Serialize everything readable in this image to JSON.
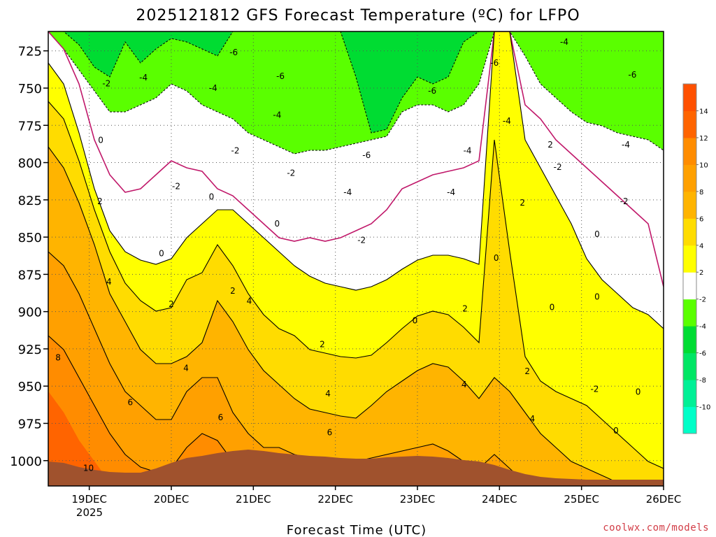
{
  "title": "2025121812 GFS Forecast Temperature (ºC) for LFPO",
  "credit": "coolwx.com/models",
  "colors": {
    "ground": "#a0522d",
    "zero_isotherm": "#c0186a",
    "contour": "#000000"
  },
  "chart_data": {
    "type": "heatmap",
    "title": "2025121812 GFS Forecast Temperature (ºC) for LFPO",
    "xlabel": "Forecast Time (UTC)",
    "ylabel": "",
    "x_ticks": [
      "19DEC",
      "20DEC",
      "21DEC",
      "22DEC",
      "23DEC",
      "24DEC",
      "25DEC",
      "26DEC"
    ],
    "x_tick_sub": "2025",
    "y_ticks": [
      725,
      750,
      775,
      800,
      825,
      850,
      875,
      900,
      925,
      950,
      975,
      1000
    ],
    "xlim_days": [
      18.5,
      26.0
    ],
    "ylim": [
      1017,
      712
    ],
    "grid": true,
    "colorbar": {
      "levels": [
        -12,
        -10,
        -8,
        -6,
        -4,
        -2,
        2,
        4,
        6,
        8,
        10,
        12,
        14,
        16
      ],
      "tick_labels": [
        "-10",
        "-8",
        "-6",
        "-4",
        "-2",
        "2",
        "4",
        "6",
        "8",
        "10",
        "12",
        "14"
      ],
      "colors": [
        "#00ffc8",
        "#00f096",
        "#00e664",
        "#00dc32",
        "#5aff00",
        "#ffffff",
        "#ffff00",
        "#ffdc00",
        "#ffb400",
        "#ffa000",
        "#ff8c00",
        "#ff6400",
        "#ff5000"
      ]
    },
    "label_text": {
      "m6": "-6",
      "m4": "-4",
      "m2": "-2",
      "z": "0",
      "p2": "2",
      "p4": "4",
      "p6": "6",
      "p8": "8",
      "p10": "10"
    },
    "contour_labels": [
      {
        "day": 18.99,
        "p": 1005,
        "t": 10
      },
      {
        "day": 18.62,
        "p": 931,
        "t": 8
      },
      {
        "day": 19.5,
        "p": 961,
        "t": 6
      },
      {
        "day": 20.6,
        "p": 971,
        "t": 6
      },
      {
        "day": 21.93,
        "p": 981,
        "t": 6
      },
      {
        "day": 19.24,
        "p": 880,
        "t": 4
      },
      {
        "day": 20.18,
        "p": 938,
        "t": 4
      },
      {
        "day": 20.95,
        "p": 893,
        "t": 4
      },
      {
        "day": 21.91,
        "p": 955,
        "t": 4
      },
      {
        "day": 23.57,
        "p": 949,
        "t": 4
      },
      {
        "day": 24.4,
        "p": 972,
        "t": 4
      },
      {
        "day": 19.13,
        "p": 826,
        "t": 2
      },
      {
        "day": 20.0,
        "p": 895,
        "t": 2
      },
      {
        "day": 20.75,
        "p": 886,
        "t": 2
      },
      {
        "day": 21.84,
        "p": 922,
        "t": 2
      },
      {
        "day": 23.58,
        "p": 898,
        "t": 2
      },
      {
        "day": 24.34,
        "p": 940,
        "t": 2
      },
      {
        "day": 24.28,
        "p": 827,
        "t": 2
      },
      {
        "day": 24.62,
        "p": 788,
        "t": 2
      },
      {
        "day": 19.14,
        "p": 785,
        "t": 0
      },
      {
        "day": 19.88,
        "p": 861,
        "t": 0
      },
      {
        "day": 20.49,
        "p": 823,
        "t": 0
      },
      {
        "day": 21.29,
        "p": 841,
        "t": 0
      },
      {
        "day": 22.97,
        "p": 906,
        "t": 0
      },
      {
        "day": 23.96,
        "p": 864,
        "t": 0
      },
      {
        "day": 24.64,
        "p": 897,
        "t": 0
      },
      {
        "day": 25.19,
        "p": 848,
        "t": 0
      },
      {
        "day": 25.19,
        "p": 890,
        "t": 0
      },
      {
        "day": 25.42,
        "p": 980,
        "t": 0
      },
      {
        "day": 25.69,
        "p": 954,
        "t": 0
      },
      {
        "day": 19.21,
        "p": 747,
        "t": -2
      },
      {
        "day": 20.06,
        "p": 816,
        "t": -2
      },
      {
        "day": 20.78,
        "p": 792,
        "t": -2
      },
      {
        "day": 21.46,
        "p": 807,
        "t": -2
      },
      {
        "day": 22.32,
        "p": 852,
        "t": -2
      },
      {
        "day": 24.71,
        "p": 803,
        "t": -2
      },
      {
        "day": 25.52,
        "p": 826,
        "t": -2
      },
      {
        "day": 25.16,
        "p": 952,
        "t": -2
      },
      {
        "day": 19.66,
        "p": 743,
        "t": -4
      },
      {
        "day": 20.51,
        "p": 750,
        "t": -4
      },
      {
        "day": 21.29,
        "p": 768,
        "t": -4
      },
      {
        "day": 22.15,
        "p": 820,
        "t": -4
      },
      {
        "day": 23.41,
        "p": 820,
        "t": -4
      },
      {
        "day": 23.61,
        "p": 792,
        "t": -4
      },
      {
        "day": 24.09,
        "p": 772,
        "t": -4
      },
      {
        "day": 24.79,
        "p": 719,
        "t": -4
      },
      {
        "day": 25.54,
        "p": 788,
        "t": -4
      },
      {
        "day": 20.76,
        "p": 726,
        "t": -6
      },
      {
        "day": 21.33,
        "p": 742,
        "t": -6
      },
      {
        "day": 22.38,
        "p": 795,
        "t": -6
      },
      {
        "day": 23.18,
        "p": 752,
        "t": -6
      },
      {
        "day": 23.94,
        "p": 733,
        "t": -6
      },
      {
        "day": 25.62,
        "p": 741,
        "t": -6
      }
    ]
  }
}
